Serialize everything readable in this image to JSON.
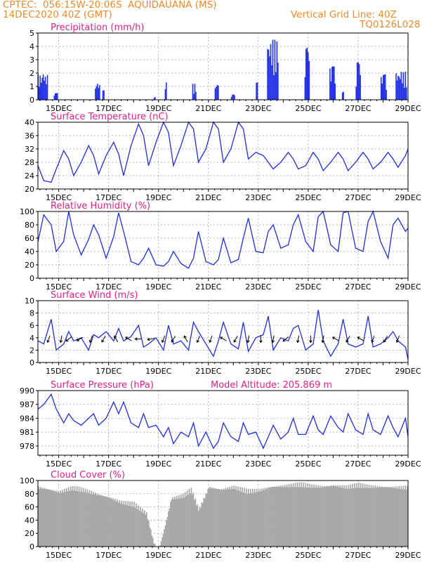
{
  "header": {
    "station": "CPTEC:  056:15W-20:06S  AQUIDAUANA (MS)",
    "datetime": "14DEC2020 40Z (GMT)",
    "grid_note": "Vertical Grid Line: 40Z",
    "run_id": "TQ0126L028"
  },
  "colors": {
    "header": "#f08a2a",
    "title": "#e0208a",
    "line": "#1f2ee0",
    "bar": "#2433e6",
    "cloud": "#a8a8a8"
  },
  "x_axis": {
    "start_day": 14,
    "start_hour": 4,
    "end_day": 29,
    "labels": [
      "15DEC",
      "17DEC",
      "19DEC",
      "21DEC",
      "23DEC",
      "25DEC",
      "27DEC",
      "29DEC"
    ],
    "label_days": [
      15,
      17,
      19,
      21,
      23,
      25,
      27,
      29
    ]
  },
  "chart_data": [
    {
      "id": "precip",
      "type": "bar",
      "title": "Precipitation (mm/h)",
      "ylim": [
        0,
        5
      ],
      "yticks": [
        0,
        1,
        2,
        3,
        4,
        5
      ],
      "bursts": [
        {
          "day": 14.15,
          "span": 0.4,
          "peak": 1.9
        },
        {
          "day": 14.8,
          "span": 0.15,
          "peak": 0.5
        },
        {
          "day": 16.45,
          "span": 0.2,
          "peak": 1.2
        },
        {
          "day": 16.75,
          "span": 0.1,
          "peak": 0.7
        },
        {
          "day": 18.8,
          "span": 0.1,
          "peak": 0.2
        },
        {
          "day": 19.25,
          "span": 0.1,
          "peak": 1.3
        },
        {
          "day": 20.35,
          "span": 0.15,
          "peak": 1.2
        },
        {
          "day": 21.25,
          "span": 0.15,
          "peak": 1.1
        },
        {
          "day": 21.9,
          "span": 0.15,
          "peak": 0.4
        },
        {
          "day": 22.9,
          "span": 0.1,
          "peak": 1.3
        },
        {
          "day": 23.35,
          "span": 0.45,
          "peak": 4.5
        },
        {
          "day": 24.85,
          "span": 0.2,
          "peak": 3.9
        },
        {
          "day": 25.85,
          "span": 0.25,
          "peak": 2.5
        },
        {
          "day": 26.35,
          "span": 0.1,
          "peak": 0.6
        },
        {
          "day": 26.9,
          "span": 0.2,
          "peak": 2.8
        },
        {
          "day": 27.9,
          "span": 0.25,
          "peak": 1.9
        },
        {
          "day": 28.5,
          "span": 0.45,
          "peak": 2.1
        }
      ]
    },
    {
      "id": "temp",
      "type": "line",
      "title": "Surface Temperature (nC)",
      "ylim": [
        20,
        40
      ],
      "yticks": [
        20,
        24,
        28,
        32,
        36,
        40
      ],
      "x_days": [
        14.17,
        14.4,
        14.7,
        14.9,
        15.2,
        15.4,
        15.6,
        15.9,
        16.2,
        16.4,
        16.6,
        16.9,
        17.2,
        17.4,
        17.6,
        17.9,
        18.2,
        18.4,
        18.6,
        18.9,
        19.2,
        19.4,
        19.6,
        19.9,
        20.2,
        20.4,
        20.6,
        20.9,
        21.2,
        21.4,
        21.6,
        21.9,
        22.2,
        22.4,
        22.6,
        22.9,
        23.2,
        23.4,
        23.6,
        23.9,
        24.2,
        24.4,
        24.6,
        24.9,
        25.2,
        25.4,
        25.6,
        25.9,
        26.2,
        26.4,
        26.6,
        26.9,
        27.2,
        27.4,
        27.6,
        27.9,
        28.2,
        28.4,
        28.6,
        28.9,
        29.0
      ],
      "values": [
        27,
        22.5,
        22,
        26,
        31.5,
        29,
        24,
        28,
        33,
        30,
        24.5,
        30,
        34,
        30.5,
        24,
        33,
        39.5,
        36,
        27,
        34,
        40,
        37,
        27,
        33,
        40,
        38,
        28,
        32,
        40,
        38,
        28,
        32,
        40,
        38,
        29,
        31,
        30,
        28,
        26,
        28,
        31,
        29,
        26,
        27,
        31,
        29,
        25.5,
        28,
        31,
        29,
        25.5,
        28,
        31,
        29,
        26,
        28,
        31,
        29,
        26.5,
        30,
        32
      ]
    },
    {
      "id": "humidity",
      "type": "line",
      "title": "Relative Humidity (%)",
      "ylim": [
        0,
        100
      ],
      "yticks": [
        0,
        20,
        40,
        60,
        80,
        100
      ],
      "x_days": [
        14.17,
        14.4,
        14.7,
        14.9,
        15.2,
        15.4,
        15.6,
        15.9,
        16.2,
        16.4,
        16.6,
        16.9,
        17.2,
        17.4,
        17.6,
        17.9,
        18.2,
        18.4,
        18.6,
        18.9,
        19.2,
        19.4,
        19.6,
        19.9,
        20.2,
        20.4,
        20.6,
        20.9,
        21.2,
        21.4,
        21.6,
        21.9,
        22.2,
        22.4,
        22.6,
        22.9,
        23.2,
        23.4,
        23.6,
        23.9,
        24.2,
        24.4,
        24.6,
        24.9,
        25.2,
        25.4,
        25.6,
        25.9,
        26.2,
        26.4,
        26.6,
        26.9,
        27.2,
        27.4,
        27.6,
        27.9,
        28.2,
        28.4,
        28.6,
        28.9,
        29.0
      ],
      "values": [
        55,
        95,
        80,
        40,
        55,
        100,
        65,
        35,
        58,
        80,
        65,
        30,
        62,
        98,
        70,
        25,
        20,
        30,
        45,
        20,
        18,
        25,
        40,
        22,
        15,
        30,
        70,
        25,
        20,
        28,
        60,
        23,
        28,
        60,
        90,
        40,
        38,
        70,
        80,
        45,
        50,
        80,
        95,
        55,
        40,
        92,
        100,
        50,
        40,
        98,
        100,
        45,
        40,
        85,
        100,
        55,
        30,
        80,
        90,
        70,
        75
      ]
    },
    {
      "id": "wind",
      "type": "line",
      "title": "Surface Wind (m/s)",
      "ylim": [
        0,
        10
      ],
      "yticks": [
        0,
        2,
        4,
        6,
        8,
        10
      ],
      "x_days": [
        14.17,
        14.4,
        14.7,
        14.9,
        15.2,
        15.4,
        15.6,
        15.9,
        16.2,
        16.4,
        16.6,
        16.9,
        17.2,
        17.4,
        17.6,
        17.9,
        18.2,
        18.4,
        18.6,
        18.9,
        19.2,
        19.4,
        19.6,
        19.9,
        20.2,
        20.4,
        20.6,
        20.9,
        21.2,
        21.4,
        21.6,
        21.9,
        22.2,
        22.4,
        22.6,
        22.9,
        23.2,
        23.4,
        23.6,
        23.9,
        24.2,
        24.4,
        24.6,
        24.9,
        25.2,
        25.4,
        25.6,
        25.9,
        26.2,
        26.4,
        26.6,
        26.9,
        27.2,
        27.4,
        27.6,
        27.9,
        28.2,
        28.4,
        28.6,
        28.9,
        29.0
      ],
      "values": [
        3.5,
        3,
        7,
        2,
        3,
        5,
        3.5,
        4,
        2,
        4.5,
        4,
        5,
        3.5,
        5.5,
        3.5,
        4.2,
        6,
        2.5,
        3,
        4,
        2,
        6,
        3,
        3.5,
        2,
        6.5,
        5,
        3,
        1,
        3.5,
        6.5,
        3,
        2.2,
        6.5,
        1.8,
        4,
        4.5,
        7.5,
        2,
        4,
        3.5,
        5.5,
        6,
        2,
        3,
        8.5,
        3.5,
        1,
        3,
        7,
        3,
        2.5,
        3,
        7.5,
        2.5,
        3,
        4,
        5,
        3.5,
        2.5,
        0.5
      ],
      "arrows": [
        {
          "day": 14.6,
          "dir": 200
        },
        {
          "day": 15.1,
          "dir": 190
        },
        {
          "day": 15.4,
          "dir": 230
        },
        {
          "day": 15.85,
          "dir": 240
        },
        {
          "day": 16.3,
          "dir": 200
        },
        {
          "day": 16.8,
          "dir": 210
        },
        {
          "day": 17.3,
          "dir": 330
        },
        {
          "day": 17.8,
          "dir": 300
        },
        {
          "day": 18.2,
          "dir": 270
        },
        {
          "day": 18.7,
          "dir": 260
        },
        {
          "day": 19.2,
          "dir": 200
        },
        {
          "day": 19.6,
          "dir": 210
        },
        {
          "day": 20.1,
          "dir": 330
        },
        {
          "day": 20.6,
          "dir": 200
        },
        {
          "day": 21.1,
          "dir": 200
        },
        {
          "day": 21.6,
          "dir": 300
        },
        {
          "day": 22.1,
          "dir": 210
        },
        {
          "day": 22.6,
          "dir": 190
        },
        {
          "day": 23.1,
          "dir": 180
        },
        {
          "day": 23.6,
          "dir": 190
        },
        {
          "day": 24.1,
          "dir": 230
        },
        {
          "day": 24.6,
          "dir": 190
        },
        {
          "day": 25.1,
          "dir": 180
        },
        {
          "day": 25.6,
          "dir": 190
        },
        {
          "day": 26.1,
          "dir": 300
        },
        {
          "day": 26.6,
          "dir": 210
        },
        {
          "day": 27.1,
          "dir": 300
        },
        {
          "day": 27.6,
          "dir": 200
        },
        {
          "day": 28.1,
          "dir": 210
        },
        {
          "day": 28.6,
          "dir": 200
        }
      ]
    },
    {
      "id": "pressure",
      "type": "line",
      "title": "Surface Pressure (hPa)",
      "subtitle": "Model Altitude: 205.869  m",
      "ylim": [
        976,
        990
      ],
      "yticks": [
        978,
        981,
        984,
        987,
        990
      ],
      "x_days": [
        14.17,
        14.4,
        14.7,
        14.9,
        15.2,
        15.4,
        15.6,
        15.9,
        16.2,
        16.4,
        16.6,
        16.9,
        17.2,
        17.4,
        17.6,
        17.9,
        18.2,
        18.4,
        18.6,
        18.9,
        19.2,
        19.4,
        19.6,
        19.9,
        20.2,
        20.4,
        20.6,
        20.9,
        21.2,
        21.4,
        21.6,
        21.9,
        22.2,
        22.4,
        22.6,
        22.9,
        23.2,
        23.4,
        23.6,
        23.9,
        24.2,
        24.4,
        24.6,
        24.9,
        25.2,
        25.4,
        25.6,
        25.9,
        26.2,
        26.4,
        26.6,
        26.9,
        27.2,
        27.4,
        27.6,
        27.9,
        28.2,
        28.4,
        28.6,
        28.9,
        29.0
      ],
      "values": [
        986,
        987,
        989.2,
        986,
        983,
        985,
        983.5,
        982.5,
        984,
        985,
        982.5,
        984,
        987.5,
        985,
        987.5,
        983,
        982,
        985,
        982,
        982.5,
        980,
        982,
        978.5,
        981,
        980,
        983,
        978,
        981,
        977.5,
        979,
        983,
        980,
        979,
        983,
        980.5,
        981,
        977.5,
        980,
        982.5,
        979.5,
        981,
        984,
        980.5,
        980.5,
        984.5,
        981.5,
        980.5,
        984.5,
        982,
        981,
        985,
        981.5,
        980.5,
        985,
        981.5,
        980.5,
        984.5,
        982,
        980,
        984,
        980
      ]
    },
    {
      "id": "cloud",
      "type": "bar",
      "title": "Cloud Cover (%)",
      "ylim": [
        0,
        100
      ],
      "yticks": [
        0,
        20,
        40,
        60,
        80,
        100
      ],
      "x_days": [
        14.17,
        14.6,
        15.0,
        15.5,
        16.0,
        16.5,
        17.0,
        17.5,
        18.0,
        18.5,
        18.8,
        19.0,
        19.2,
        19.5,
        20.0,
        20.3,
        20.6,
        21.0,
        21.5,
        22.0,
        22.5,
        23.0,
        23.5,
        24.0,
        24.5,
        25.0,
        25.5,
        26.0,
        26.5,
        27.0,
        27.5,
        28.0,
        28.5,
        29.0
      ],
      "values": [
        95,
        92,
        88,
        93,
        90,
        85,
        80,
        72,
        68,
        55,
        10,
        2,
        30,
        78,
        82,
        90,
        60,
        95,
        92,
        95,
        88,
        90,
        96,
        97,
        98,
        97,
        96,
        98,
        95,
        97,
        96,
        96,
        95,
        94
      ]
    }
  ]
}
